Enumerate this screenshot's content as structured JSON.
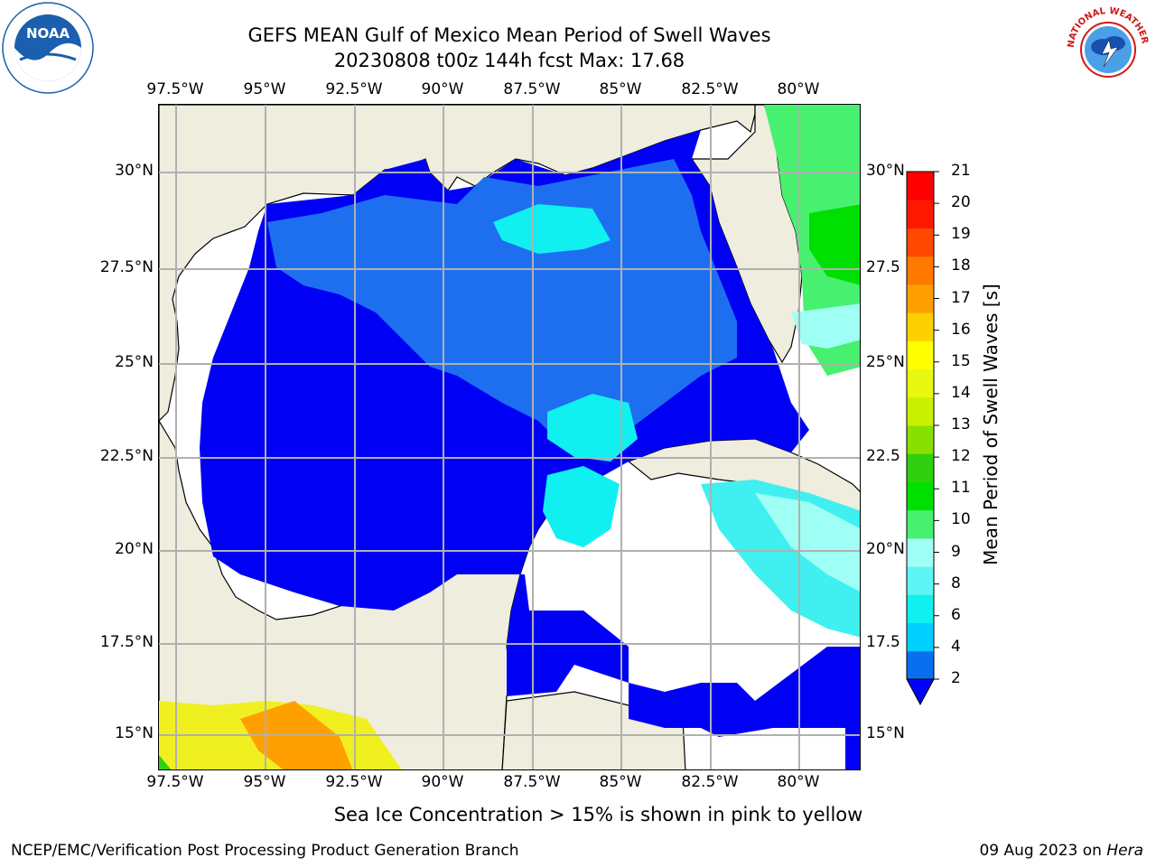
{
  "title": {
    "line1": "GEFS MEAN Gulf of Mexico Mean Period of Swell Waves",
    "line2": "20230808 t00z 144h fcst   Max: 17.68"
  },
  "logos": {
    "left": {
      "icon": "noaa-logo",
      "text": "NOAA"
    },
    "right": {
      "icon": "nws-logo",
      "text": "NATIONAL WEATHER SERVICE"
    }
  },
  "map": {
    "projection": "lat-lon",
    "lon_range": [
      "98.5°W",
      "78.5°W"
    ],
    "lat_range": [
      "14°N",
      "31.8°N"
    ],
    "lon_ticks_top": [
      "97.5°W",
      "95°W",
      "92.5°W",
      "90°W",
      "87.5°W",
      "85°W",
      "82.5°W",
      "80°W"
    ],
    "lon_ticks_bottom": [
      "97.5°W",
      "95°W",
      "92.5°W",
      "90°W",
      "87.5°W",
      "85°W",
      "82.5°W",
      "80°W"
    ],
    "lat_ticks_left": [
      "30°N",
      "27.5°N",
      "25°N",
      "22.5°N",
      "20°N",
      "17.5°N",
      "15°N"
    ],
    "lat_ticks_right": [
      "30°N",
      "27.5",
      "25°N",
      "22.5",
      "20°N",
      "17.5",
      "15°N"
    ],
    "land_color": "#efedde",
    "grid_color": "#b0b0b0"
  },
  "colorbar": {
    "label": "Mean Period of Swell Waves [s]",
    "tick_labels": [
      "2",
      "4",
      "6",
      "8",
      "9",
      "10",
      "11",
      "12",
      "13",
      "14",
      "15",
      "16",
      "17",
      "18",
      "19",
      "20",
      "21"
    ],
    "colors": [
      "#0a6ef0",
      "#00d0ff",
      "#10f0f0",
      "#60f5f5",
      "#a0fff4",
      "#48f070",
      "#00e000",
      "#30d010",
      "#88e000",
      "#c8f000",
      "#e8f810",
      "#ffff00",
      "#ffd000",
      "#ffa000",
      "#ff7800",
      "#ff4800",
      "#ff1800",
      "#ff0000"
    ],
    "extend_color": "#0000ff"
  },
  "subcaption": "Sea Ice Concentration > 15% is shown in pink to yellow",
  "footer": {
    "left": "NCEP/EMC/Verification Post Processing Product Generation Branch",
    "right_date": "09 Aug 2023 on ",
    "right_host": "Hera"
  }
}
